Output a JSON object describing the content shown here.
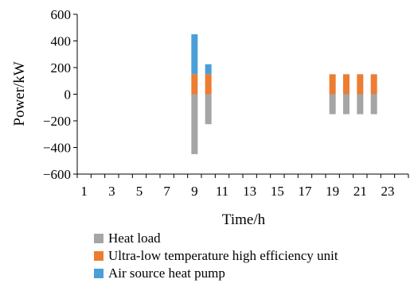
{
  "chart_data": {
    "type": "bar",
    "stacked": true,
    "x": [
      1,
      2,
      3,
      4,
      5,
      6,
      7,
      8,
      9,
      10,
      11,
      12,
      13,
      14,
      15,
      16,
      17,
      18,
      19,
      20,
      21,
      22,
      23,
      24
    ],
    "xticks": [
      1,
      3,
      5,
      7,
      9,
      11,
      13,
      15,
      17,
      19,
      21,
      23
    ],
    "series": [
      {
        "name": "Heat load",
        "color": "#a5a5a5",
        "values": [
          0,
          0,
          0,
          0,
          0,
          0,
          0,
          0,
          -450,
          -225,
          0,
          0,
          0,
          0,
          0,
          0,
          0,
          0,
          -150,
          -150,
          -150,
          -150,
          0,
          0
        ]
      },
      {
        "name": "Ultra-low temperature high efficiency unit",
        "color": "#ed7d31",
        "values": [
          0,
          0,
          0,
          0,
          0,
          0,
          0,
          0,
          150,
          150,
          0,
          0,
          0,
          0,
          0,
          0,
          0,
          0,
          150,
          150,
          150,
          150,
          0,
          0
        ]
      },
      {
        "name": "Air source heat pump",
        "color": "#4a9fd8",
        "values": [
          0,
          0,
          0,
          0,
          0,
          0,
          0,
          0,
          300,
          75,
          0,
          0,
          0,
          0,
          0,
          0,
          0,
          0,
          0,
          0,
          0,
          0,
          0,
          0
        ]
      }
    ],
    "xlabel": "Time/h",
    "ylabel": "Power/kW",
    "ylim": [
      -600,
      600
    ],
    "yticks": [
      -600,
      -400,
      -200,
      0,
      200,
      400,
      600
    ],
    "legend_position": "bottom"
  }
}
